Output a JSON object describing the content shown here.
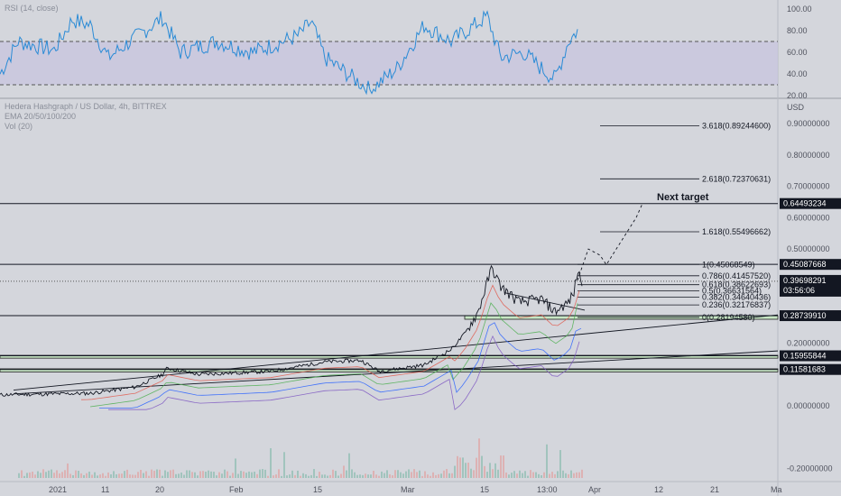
{
  "rsi_panel": {
    "label": "RSI (14, close)",
    "ticks": [
      "100.00",
      "80.00",
      "60.00",
      "40.00",
      "20.00"
    ],
    "tick_values": [
      100,
      80,
      60,
      40,
      20
    ],
    "overbought": 70,
    "oversold": 30
  },
  "main_panel": {
    "title": "Hedera Hashgraph / US Dollar, 4h, BITTREX",
    "ema_label": "EMA 20/50/100/200",
    "vol_label": "Vol (20)",
    "currency": "USD",
    "price_ticks": [
      "0.90000000",
      "0.80000000",
      "0.70000000",
      "0.60000000",
      "0.50000000",
      "0.40000000",
      "0.20000000",
      "0.00000000",
      "-0.20000000"
    ],
    "price_tick_values": [
      0.9,
      0.8,
      0.7,
      0.6,
      0.5,
      0.4,
      0.2,
      0.0,
      -0.2
    ],
    "price_tag": "0.39698291",
    "countdown": "03:56:06",
    "level_tags": [
      "0.64493234",
      "0.45087668",
      "0.28739910",
      "0.15955844",
      "0.11581683"
    ],
    "annotation": "Next target"
  },
  "time_axis": {
    "labels": [
      "2021",
      "11",
      "20",
      "Feb",
      "15",
      "Mar",
      "15",
      "13:00",
      "Apr",
      "12",
      "21",
      "Ma"
    ]
  },
  "colors": {
    "background": "#d4d6dc",
    "rsi_line": "#2a8bd6",
    "rsi_band": "#c8c6de",
    "price_tag": "#131722",
    "support_zone": "#c7e6c4",
    "ema20": "#e05a4e",
    "ema50": "#4caf50",
    "ema100": "#2962ff",
    "ema200": "#7e57c2"
  },
  "chart_data": {
    "type": "line",
    "title": "Hedera Hashgraph / US Dollar, 4h, BITTREX",
    "xlabel": "",
    "ylabel": "USD",
    "ylim": [
      -0.24,
      1.02
    ],
    "x": [
      "2021",
      "11",
      "20",
      "Feb",
      "15",
      "Mar",
      "15",
      "13:00"
    ],
    "series": [
      {
        "name": "close",
        "values": [
          0.05,
          0.06,
          0.13,
          0.12,
          0.15,
          0.12,
          0.44,
          0.39
        ]
      }
    ],
    "fib_levels": [
      {
        "label": "3.618(0.89244600)",
        "value": 0.892446
      },
      {
        "label": "2.618(0.72370631)",
        "value": 0.72370631
      },
      {
        "label": "1.618(0.55496662)",
        "value": 0.55496662
      },
      {
        "label": "1(0.45068549)",
        "value": 0.45068549
      },
      {
        "label": "0.786(0.41457520)",
        "value": 0.4145752
      },
      {
        "label": "0.618(0.38622693)",
        "value": 0.38622693
      },
      {
        "label": "0.5(0.36631564)",
        "value": 0.36631564
      },
      {
        "label": "0.382(0.34640436)",
        "value": 0.34640436
      },
      {
        "label": "0.236(0.32176837)",
        "value": 0.32176837
      },
      {
        "label": "0(0.28194580)",
        "value": 0.2819458
      }
    ],
    "horizontal_levels": [
      0.64493234,
      0.45087668,
      0.2873991,
      0.15955844,
      0.11581683
    ],
    "rsi": {
      "ylim": [
        10,
        105
      ],
      "levels": [
        70,
        30
      ]
    }
  }
}
